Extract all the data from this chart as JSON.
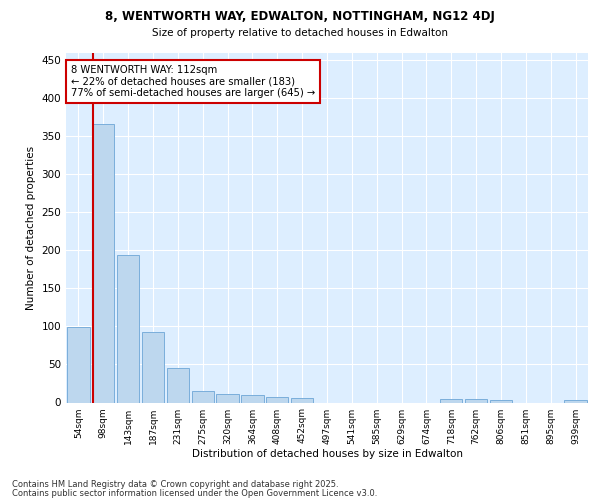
{
  "title1": "8, WENTWORTH WAY, EDWALTON, NOTTINGHAM, NG12 4DJ",
  "title2": "Size of property relative to detached houses in Edwalton",
  "xlabel": "Distribution of detached houses by size in Edwalton",
  "ylabel": "Number of detached properties",
  "bin_labels": [
    "54sqm",
    "98sqm",
    "143sqm",
    "187sqm",
    "231sqm",
    "275sqm",
    "320sqm",
    "364sqm",
    "408sqm",
    "452sqm",
    "497sqm",
    "541sqm",
    "585sqm",
    "629sqm",
    "674sqm",
    "718sqm",
    "762sqm",
    "806sqm",
    "851sqm",
    "895sqm",
    "939sqm"
  ],
  "bar_values": [
    99,
    366,
    194,
    93,
    45,
    15,
    11,
    10,
    7,
    6,
    0,
    0,
    0,
    0,
    0,
    5,
    4,
    3,
    0,
    0,
    3
  ],
  "bar_color": "#bdd7ee",
  "bar_edge_color": "#7aaedb",
  "property_line_label": "8 WENTWORTH WAY: 112sqm",
  "annotation_line1": "← 22% of detached houses are smaller (183)",
  "annotation_line2": "77% of semi-detached houses are larger (645) →",
  "vline_color": "#cc0000",
  "annotation_box_edge": "#cc0000",
  "footer1": "Contains HM Land Registry data © Crown copyright and database right 2025.",
  "footer2": "Contains public sector information licensed under the Open Government Licence v3.0.",
  "bg_color": "#ddeeff",
  "ylim": [
    0,
    460
  ],
  "yticks": [
    0,
    50,
    100,
    150,
    200,
    250,
    300,
    350,
    400,
    450
  ]
}
